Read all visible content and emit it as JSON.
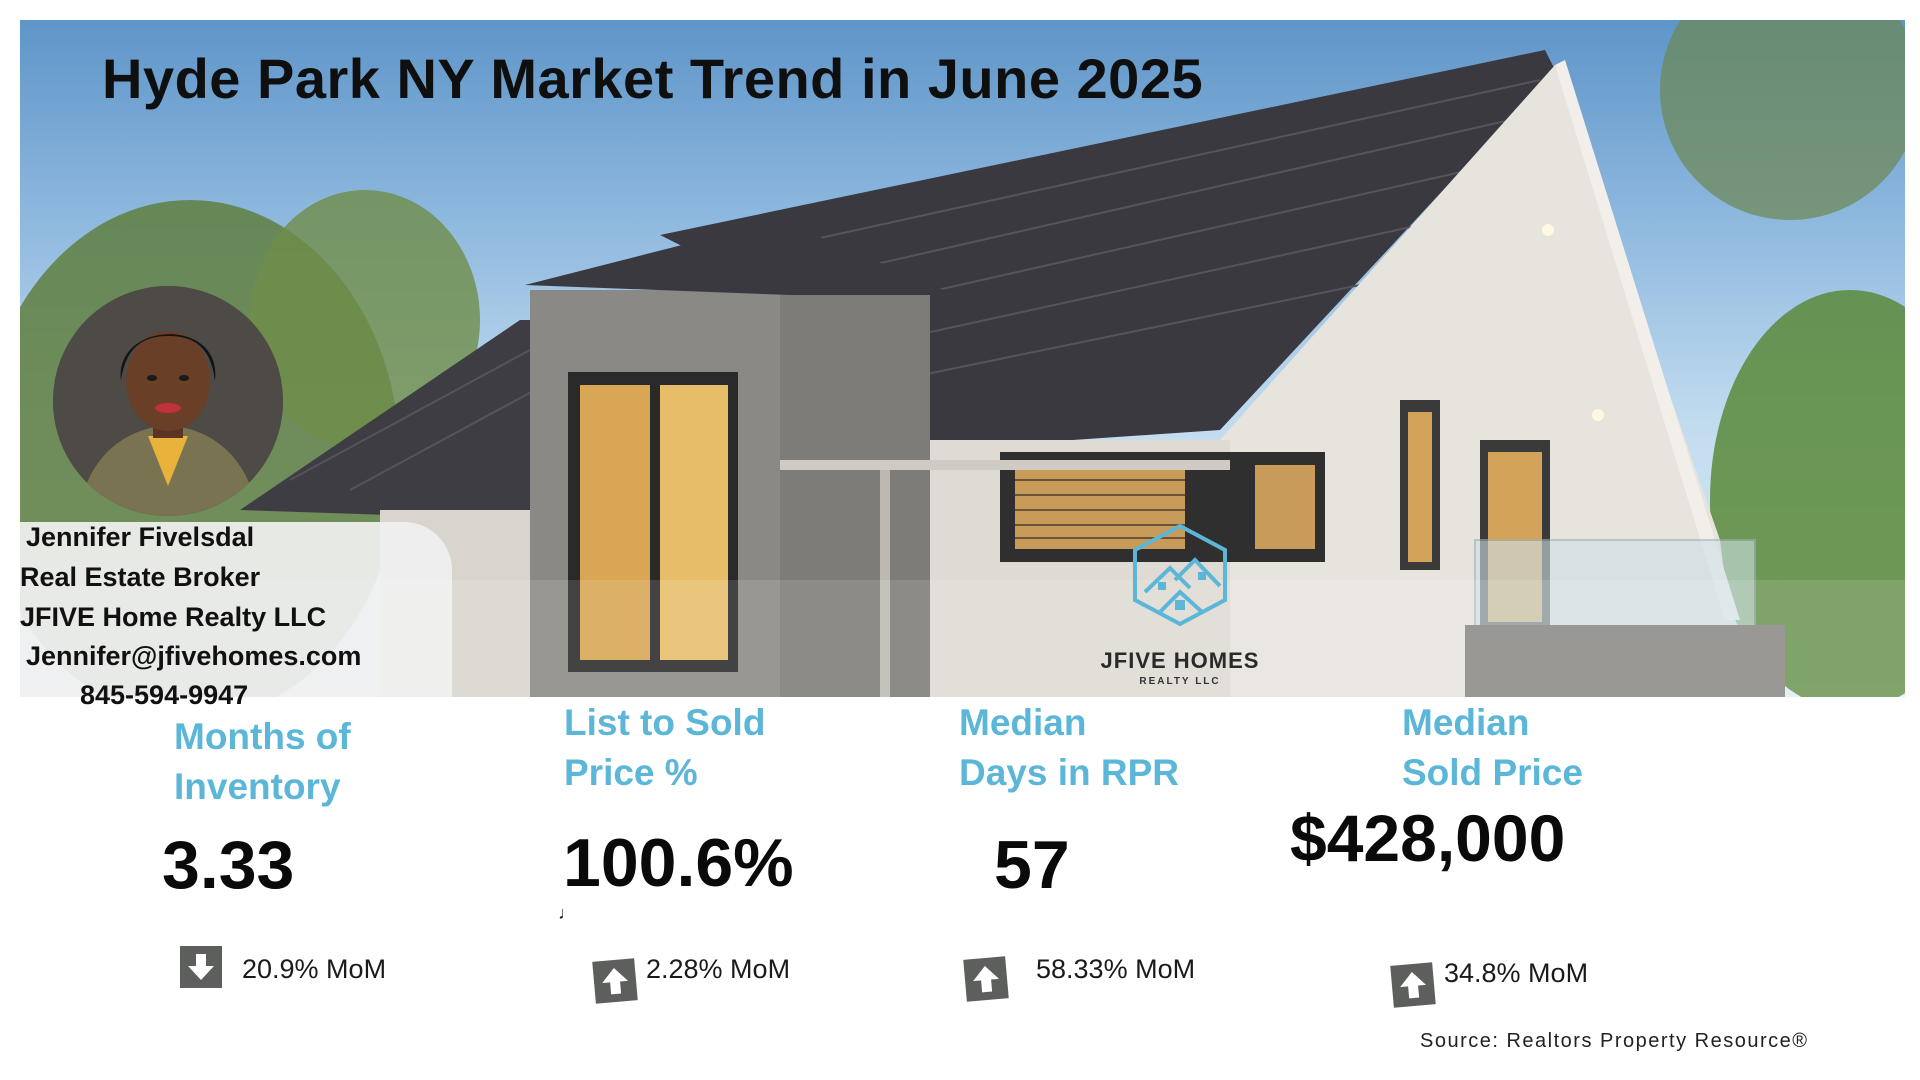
{
  "title": "Hyde Park NY Market Trend in June 2025",
  "agent": {
    "name": "Jennifer Fivelsdal",
    "role": "Real Estate Broker",
    "company": "JFIVE Home Realty LLC",
    "email": "Jennifer@jfivehomes.com",
    "phone": "845-594-9947"
  },
  "logo": {
    "name": "JFIVE HOMES",
    "sub": "REALTY LLC",
    "icon": "houses-hexagon-icon",
    "color": "#5bb6d8"
  },
  "stats": [
    {
      "label_line1": "Months of",
      "label_line2": "Inventory",
      "value": "3.33",
      "direction": "down",
      "change": "20.9% MoM"
    },
    {
      "label_line1": "List to Sold",
      "label_line2": "Price %",
      "value": "100.6%",
      "direction": "up",
      "change": "2.28% MoM"
    },
    {
      "label_line1": "Median",
      "label_line2": "Days in RPR",
      "value": "57",
      "direction": "up",
      "change": "58.33% MoM"
    },
    {
      "label_line1": "Median",
      "label_line2": "Sold Price",
      "value": "$428,000",
      "direction": "up",
      "change": "34.8% MoM"
    }
  ],
  "stray_mark": "♩",
  "source": "Source: Realtors Property Resource®",
  "colors": {
    "accent": "#5bb6d8",
    "arrow_box": "#5d5f5c",
    "roof": "#3a3940"
  }
}
